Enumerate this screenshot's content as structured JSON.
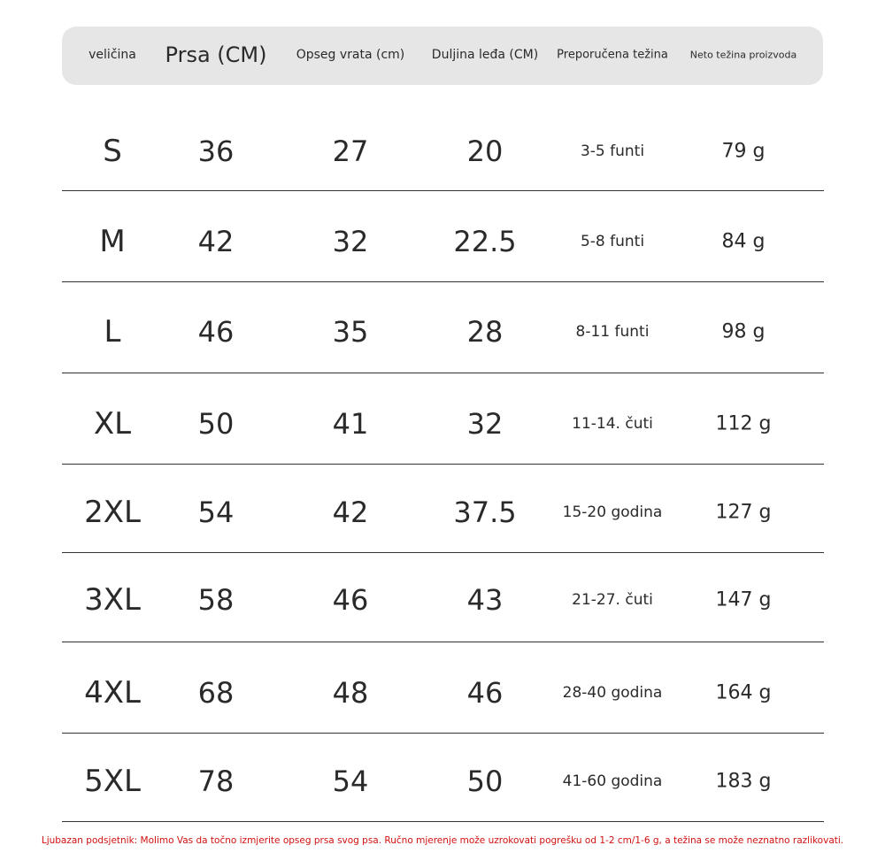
{
  "table": {
    "columns": [
      "veličina",
      "Prsa (CM)",
      "Opseg vrata (cm)",
      "Duljina leđa (CM)",
      "Preporučena težina",
      "Neto težina proizvoda"
    ],
    "rows": [
      [
        "S",
        "36",
        "27",
        "20",
        "3-5 funti",
        "79 g"
      ],
      [
        "M",
        "42",
        "32",
        "22.5",
        "5-8 funti",
        "84 g"
      ],
      [
        "L",
        "46",
        "35",
        "28",
        "8-11 funti",
        "98 g"
      ],
      [
        "XL",
        "50",
        "41",
        "32",
        "11-14. čuti",
        "112 g"
      ],
      [
        "2XL",
        "54",
        "42",
        "37.5",
        "15-20 godina",
        "127 g"
      ],
      [
        "3XL",
        "58",
        "46",
        "43",
        "21-27. čuti",
        "147 g"
      ],
      [
        "4XL",
        "68",
        "48",
        "46",
        "28-40 godina",
        "164 g"
      ],
      [
        "5XL",
        "78",
        "54",
        "50",
        "41-60 godina",
        "183 g"
      ]
    ]
  },
  "footer": {
    "note": "Ljubazan podsjetnik: Molimo Vas da točno izmjerite opseg prsa svog psa. Ručno mjerenje može uzrokovati pogrešku od 1-2 cm/1-6 g, a težina se može neznatno razlikovati."
  }
}
